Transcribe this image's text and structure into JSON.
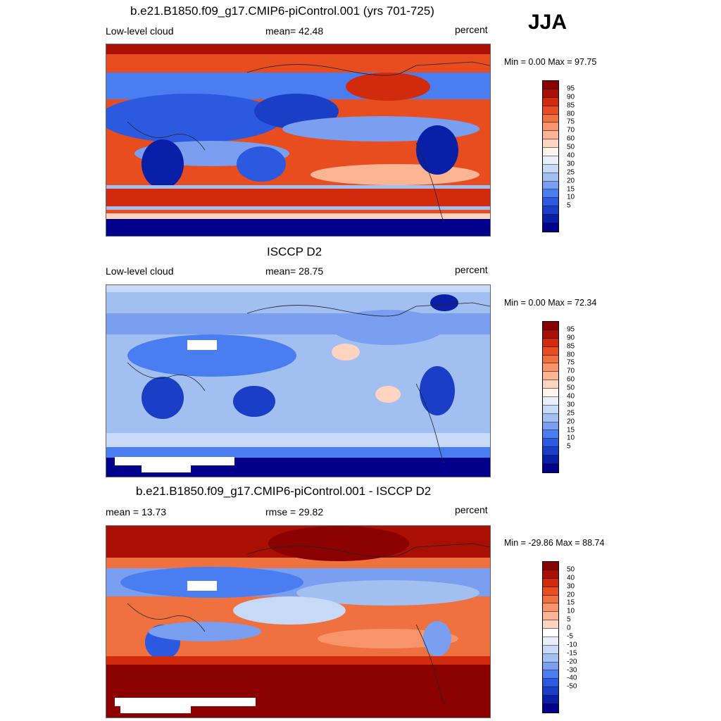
{
  "season": "JJA",
  "colors": {
    "abs": [
      "#00008b",
      "#0a1fa8",
      "#1a3ec6",
      "#2b5ae0",
      "#4a7df0",
      "#7a9ef0",
      "#a2bff2",
      "#c6daf7",
      "#e6effb",
      "#fff5ee",
      "#fcd4bf",
      "#fbb595",
      "#f7946b",
      "#f07140",
      "#e74d1f",
      "#d12a0c",
      "#a90f02",
      "#8b0000"
    ],
    "diff": [
      "#00008b",
      "#0a1fa8",
      "#1a3ec6",
      "#2b5ae0",
      "#4a7df0",
      "#7a9ef0",
      "#a2bff2",
      "#c6daf7",
      "#e6effb",
      "#ffffff",
      "#fcd4bf",
      "#fbb595",
      "#f7946b",
      "#f07140",
      "#e74d1f",
      "#d12a0c",
      "#a90f02",
      "#8b0000"
    ]
  },
  "panels": [
    {
      "title": "b.e21.B1850.f09_g17.CMIP6-piControl.001 (yrs 701-725)",
      "left_label": "Low-level cloud",
      "center_label": "mean=  42.48",
      "right_label": "percent",
      "minmax": "Min =   0.00 Max =  97.75",
      "levels": [
        "95",
        "90",
        "85",
        "80",
        "75",
        "70",
        "60",
        "50",
        "40",
        "30",
        "25",
        "20",
        "15",
        "10",
        "5"
      ],
      "palette": "abs"
    },
    {
      "title": "ISCCP D2",
      "left_label": "Low-level cloud",
      "center_label": "mean=  28.75",
      "right_label": "percent",
      "minmax": "Min =   0.00 Max =  72.34",
      "levels": [
        "95",
        "90",
        "85",
        "80",
        "75",
        "70",
        "60",
        "50",
        "40",
        "30",
        "25",
        "20",
        "15",
        "10",
        "5"
      ],
      "palette": "abs"
    },
    {
      "title": "b.e21.B1850.f09_g17.CMIP6-piControl.001 - ISCCP D2",
      "left_label": "mean =  13.73",
      "center_label": "rmse =  29.82",
      "right_label": "percent",
      "minmax": "Min = -29.86 Max =  88.74",
      "levels": [
        "50",
        "40",
        "30",
        "20",
        "15",
        "10",
        "5",
        "0",
        "-5",
        "-10",
        "-15",
        "-20",
        "-30",
        "-40",
        "-50"
      ],
      "palette": "diff"
    }
  ]
}
